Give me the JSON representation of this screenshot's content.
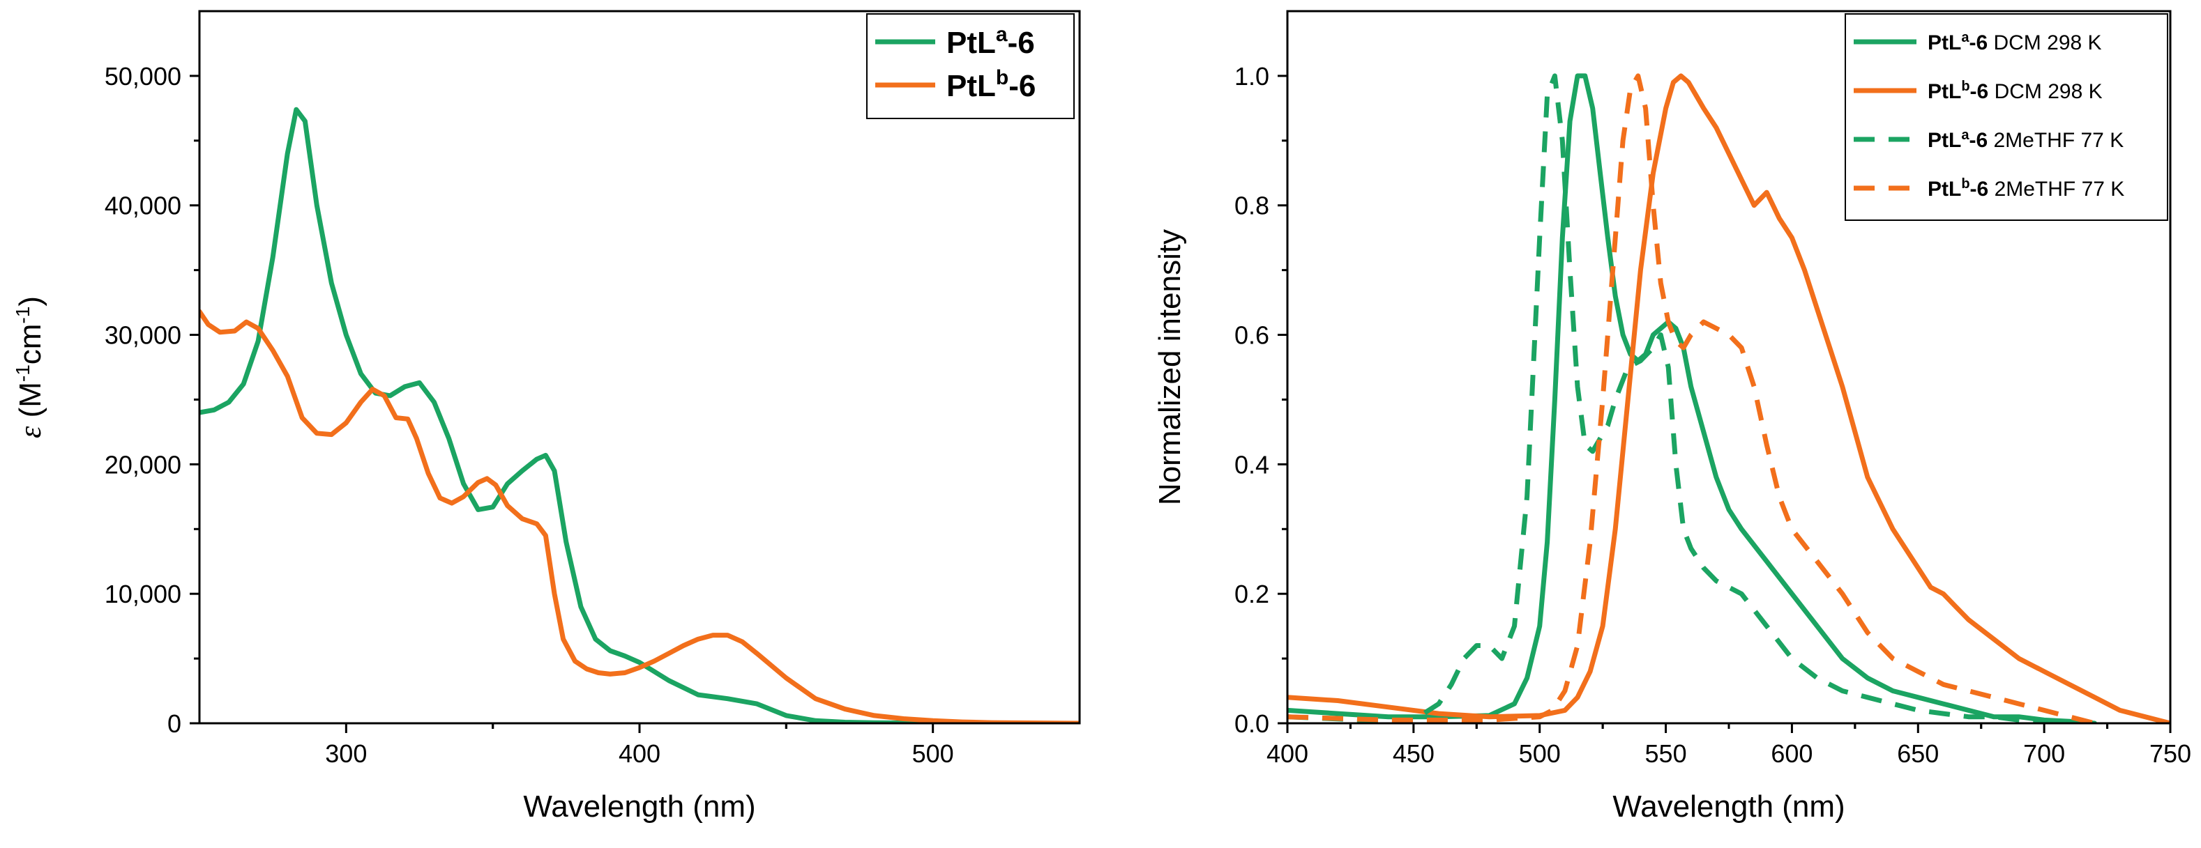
{
  "chart_data": [
    {
      "type": "line",
      "xlabel": "Wavelength (nm)",
      "ylabel": "ε (M⁻¹cm⁻¹)",
      "ylabel_parts": {
        "symbol": "ε",
        "open": " (M",
        "sup1": "-1",
        "mid": "cm",
        "sup2": "-1",
        "close": ")"
      },
      "xlim": [
        250,
        550
      ],
      "ylim": [
        0,
        55000
      ],
      "xticks": [
        300,
        400,
        500
      ],
      "yticks": [
        0,
        10000,
        20000,
        30000,
        40000,
        50000
      ],
      "ytick_labels": [
        "0",
        "10,000",
        "20,000",
        "30,000",
        "40,000",
        "50,000"
      ],
      "grid": false,
      "legend_position": "top-right",
      "series": [
        {
          "name": "PtLa-6",
          "legend": {
            "base": "PtL",
            "sup": "a",
            "suffix": "-6"
          },
          "color": "#1ba462",
          "dash": "solid",
          "x": [
            250,
            255,
            260,
            265,
            270,
            275,
            280,
            283,
            286,
            290,
            295,
            300,
            305,
            310,
            315,
            320,
            325,
            330,
            335,
            340,
            345,
            350,
            355,
            360,
            365,
            368,
            371,
            375,
            380,
            385,
            390,
            395,
            400,
            410,
            420,
            430,
            440,
            450,
            460,
            470,
            480,
            500,
            550
          ],
          "y": [
            24000,
            24200,
            24800,
            26200,
            29500,
            36000,
            44000,
            47400,
            46500,
            40000,
            34000,
            30000,
            27000,
            25500,
            25300,
            26000,
            26300,
            24800,
            22000,
            18500,
            16500,
            16700,
            18500,
            19500,
            20400,
            20700,
            19500,
            14000,
            9000,
            6500,
            5600,
            5200,
            4700,
            3300,
            2200,
            1900,
            1500,
            600,
            200,
            80,
            40,
            10,
            0
          ]
        },
        {
          "name": "PtLb-6",
          "legend": {
            "base": "PtL",
            "sup": "b",
            "suffix": "-6"
          },
          "color": "#f26f1b",
          "dash": "solid",
          "x": [
            250,
            253,
            257,
            262,
            266,
            270,
            275,
            280,
            285,
            290,
            295,
            300,
            305,
            309,
            313,
            317,
            321,
            324,
            328,
            332,
            336,
            340,
            345,
            348,
            351,
            355,
            360,
            365,
            368,
            371,
            374,
            378,
            382,
            386,
            390,
            395,
            400,
            405,
            410,
            415,
            420,
            425,
            430,
            435,
            440,
            450,
            460,
            470,
            480,
            490,
            500,
            510,
            520,
            550
          ],
          "y": [
            31800,
            30800,
            30200,
            30300,
            31000,
            30500,
            28800,
            26800,
            23600,
            22400,
            22300,
            23200,
            24800,
            25800,
            25300,
            23600,
            23500,
            22000,
            19300,
            17400,
            17000,
            17500,
            18600,
            18900,
            18400,
            16800,
            15800,
            15400,
            14500,
            10000,
            6500,
            4800,
            4200,
            3900,
            3800,
            3900,
            4300,
            4800,
            5400,
            6000,
            6500,
            6800,
            6800,
            6300,
            5400,
            3500,
            1900,
            1100,
            600,
            350,
            200,
            100,
            50,
            0
          ]
        }
      ]
    },
    {
      "type": "line",
      "xlabel": "Wavelength (nm)",
      "ylabel": "Normalized intensity",
      "xlim": [
        400,
        750
      ],
      "ylim": [
        0,
        1.1
      ],
      "xticks": [
        400,
        450,
        500,
        550,
        600,
        650,
        700,
        750
      ],
      "yticks": [
        0,
        0.2,
        0.4,
        0.6,
        0.8,
        1.0
      ],
      "ytick_labels": [
        "0.0",
        "0.2",
        "0.4",
        "0.6",
        "0.8",
        "1.0"
      ],
      "grid": false,
      "legend_position": "top-right",
      "series": [
        {
          "name": "PtLa-6 DCM 298 K",
          "legend": {
            "base": "PtL",
            "sup": "a",
            "suffix": "-6",
            "condition": " DCM 298 K"
          },
          "color": "#1ba462",
          "dash": "solid",
          "x": [
            400,
            420,
            440,
            460,
            480,
            490,
            495,
            500,
            503,
            506,
            509,
            512,
            515,
            518,
            521,
            524,
            527,
            530,
            533,
            536,
            539,
            542,
            545,
            548,
            551,
            554,
            557,
            560,
            565,
            570,
            575,
            580,
            590,
            600,
            610,
            620,
            630,
            640,
            650,
            660,
            670,
            680,
            690,
            700,
            710,
            720
          ],
          "y": [
            0.02,
            0.015,
            0.01,
            0.01,
            0.012,
            0.03,
            0.07,
            0.15,
            0.28,
            0.5,
            0.75,
            0.93,
            1.0,
            1.0,
            0.95,
            0.85,
            0.75,
            0.66,
            0.6,
            0.57,
            0.56,
            0.57,
            0.6,
            0.61,
            0.62,
            0.61,
            0.58,
            0.52,
            0.45,
            0.38,
            0.33,
            0.3,
            0.25,
            0.2,
            0.15,
            0.1,
            0.07,
            0.05,
            0.04,
            0.03,
            0.02,
            0.01,
            0.01,
            0.005,
            0.003,
            0.0
          ]
        },
        {
          "name": "PtLb-6 DCM 298 K",
          "legend": {
            "base": "PtL",
            "sup": "b",
            "suffix": "-6",
            "condition": " DCM 298 K"
          },
          "color": "#f26f1b",
          "dash": "solid",
          "x": [
            400,
            420,
            440,
            460,
            480,
            500,
            510,
            515,
            520,
            525,
            530,
            535,
            540,
            545,
            550,
            553,
            556,
            559,
            562,
            565,
            570,
            575,
            580,
            585,
            590,
            595,
            600,
            605,
            610,
            615,
            620,
            625,
            630,
            635,
            640,
            645,
            650,
            655,
            660,
            665,
            670,
            680,
            690,
            700,
            710,
            720,
            730,
            740,
            750
          ],
          "y": [
            0.04,
            0.035,
            0.025,
            0.015,
            0.01,
            0.012,
            0.02,
            0.04,
            0.08,
            0.15,
            0.3,
            0.5,
            0.7,
            0.85,
            0.95,
            0.99,
            1.0,
            0.99,
            0.97,
            0.95,
            0.92,
            0.88,
            0.84,
            0.8,
            0.82,
            0.78,
            0.75,
            0.7,
            0.64,
            0.58,
            0.52,
            0.45,
            0.38,
            0.34,
            0.3,
            0.27,
            0.24,
            0.21,
            0.2,
            0.18,
            0.16,
            0.13,
            0.1,
            0.08,
            0.06,
            0.04,
            0.02,
            0.01,
            0.0
          ]
        },
        {
          "name": "PtLa-6 2MeTHF 77 K",
          "legend": {
            "base": "PtL",
            "sup": "a",
            "suffix": "-6",
            "condition": " 2MeTHF 77 K"
          },
          "color": "#1ba462",
          "dash": "dashed",
          "x": [
            400,
            430,
            450,
            460,
            465,
            470,
            475,
            480,
            485,
            490,
            495,
            500,
            503,
            506,
            509,
            512,
            515,
            518,
            521,
            524,
            527,
            530,
            535,
            540,
            545,
            548,
            551,
            554,
            557,
            560,
            565,
            570,
            575,
            580,
            590,
            600,
            610,
            620,
            630,
            640,
            650,
            660,
            670,
            680,
            690,
            700
          ],
          "y": [
            0.01,
            0.005,
            0.005,
            0.03,
            0.06,
            0.1,
            0.12,
            0.12,
            0.1,
            0.15,
            0.35,
            0.75,
            0.97,
            1.0,
            0.9,
            0.7,
            0.52,
            0.43,
            0.42,
            0.44,
            0.46,
            0.5,
            0.55,
            0.56,
            0.58,
            0.6,
            0.55,
            0.4,
            0.3,
            0.27,
            0.24,
            0.22,
            0.21,
            0.2,
            0.15,
            0.1,
            0.07,
            0.05,
            0.04,
            0.03,
            0.02,
            0.015,
            0.01,
            0.01,
            0.005,
            0.0
          ]
        },
        {
          "name": "PtLb-6 2MeTHF 77 K",
          "legend": {
            "base": "PtL",
            "sup": "b",
            "suffix": "-6",
            "condition": " 2MeTHF 77 K"
          },
          "color": "#f26f1b",
          "dash": "dashed",
          "x": [
            400,
            440,
            480,
            500,
            505,
            510,
            515,
            520,
            525,
            530,
            533,
            536,
            539,
            542,
            545,
            548,
            551,
            554,
            557,
            560,
            565,
            570,
            575,
            580,
            585,
            590,
            595,
            600,
            610,
            620,
            630,
            640,
            650,
            660,
            670,
            680,
            690,
            700,
            710,
            720
          ],
          "y": [
            0.01,
            0.005,
            0.005,
            0.01,
            0.02,
            0.05,
            0.12,
            0.28,
            0.5,
            0.75,
            0.9,
            0.98,
            1.0,
            0.95,
            0.8,
            0.68,
            0.62,
            0.59,
            0.58,
            0.6,
            0.62,
            0.61,
            0.6,
            0.58,
            0.52,
            0.43,
            0.35,
            0.3,
            0.25,
            0.2,
            0.14,
            0.1,
            0.08,
            0.06,
            0.05,
            0.04,
            0.03,
            0.02,
            0.01,
            0.0
          ]
        }
      ]
    }
  ]
}
